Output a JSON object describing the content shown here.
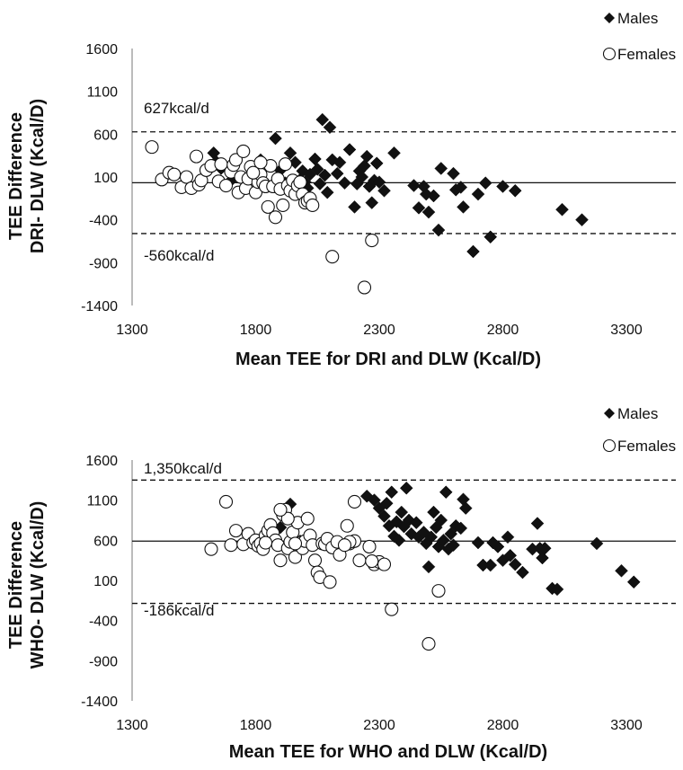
{
  "chart_data": [
    {
      "type": "scatter",
      "ylabel_line1": "TEE Difference",
      "ylabel_line2": "DRI- DLW (Kcal/D)",
      "xlabel": "Mean TEE for DRI and DLW (Kcal/D)",
      "xlim": [
        1300,
        3500
      ],
      "ylim": [
        -1400,
        1600
      ],
      "xticks": [
        1300,
        1800,
        2300,
        2800,
        3300
      ],
      "yticks": [
        -1400,
        -900,
        -400,
        100,
        600,
        1100,
        1600
      ],
      "legend": [
        "Males",
        "Females"
      ],
      "legend_position": "top-right",
      "reference_lines": {
        "mean": 33,
        "upper": 627,
        "lower": -560
      },
      "annotations": {
        "upper": "627kcal/d",
        "lower": "-560kcal/d"
      },
      "series": [
        {
          "name": "Males",
          "marker": "diamond",
          "points": [
            [
              1630,
              380
            ],
            [
              1640,
              280
            ],
            [
              1660,
              200
            ],
            [
              1700,
              60
            ],
            [
              1760,
              70
            ],
            [
              1800,
              230
            ],
            [
              1820,
              300
            ],
            [
              1880,
              550
            ],
            [
              1900,
              180
            ],
            [
              1920,
              30
            ],
            [
              1940,
              380
            ],
            [
              1960,
              270
            ],
            [
              1970,
              -50
            ],
            [
              1980,
              70
            ],
            [
              1990,
              170
            ],
            [
              2000,
              40
            ],
            [
              2010,
              -30
            ],
            [
              2020,
              130
            ],
            [
              2040,
              310
            ],
            [
              2050,
              190
            ],
            [
              2060,
              20
            ],
            [
              2070,
              770
            ],
            [
              2080,
              120
            ],
            [
              2090,
              -80
            ],
            [
              2100,
              680
            ],
            [
              2110,
              300
            ],
            [
              2130,
              140
            ],
            [
              2140,
              270
            ],
            [
              2160,
              30
            ],
            [
              2180,
              420
            ],
            [
              2200,
              -250
            ],
            [
              2210,
              20
            ],
            [
              2220,
              170
            ],
            [
              2230,
              100
            ],
            [
              2240,
              230
            ],
            [
              2250,
              340
            ],
            [
              2260,
              -10
            ],
            [
              2270,
              -200
            ],
            [
              2280,
              60
            ],
            [
              2290,
              260
            ],
            [
              2300,
              40
            ],
            [
              2320,
              -60
            ],
            [
              2360,
              380
            ],
            [
              2440,
              0
            ],
            [
              2460,
              -260
            ],
            [
              2480,
              -10
            ],
            [
              2490,
              -100
            ],
            [
              2500,
              -310
            ],
            [
              2520,
              -120
            ],
            [
              2540,
              -520
            ],
            [
              2550,
              200
            ],
            [
              2600,
              140
            ],
            [
              2610,
              -50
            ],
            [
              2630,
              -20
            ],
            [
              2640,
              -250
            ],
            [
              2700,
              -100
            ],
            [
              2730,
              30
            ],
            [
              2750,
              -600
            ],
            [
              2800,
              -10
            ],
            [
              2850,
              -60
            ],
            [
              2680,
              -770
            ],
            [
              3040,
              -280
            ],
            [
              3120,
              -400
            ]
          ]
        },
        {
          "name": "Females",
          "marker": "circle",
          "points": [
            [
              1380,
              450
            ],
            [
              1420,
              70
            ],
            [
              1450,
              150
            ],
            [
              1470,
              130
            ],
            [
              1500,
              -20
            ],
            [
              1520,
              100
            ],
            [
              1540,
              -30
            ],
            [
              1560,
              340
            ],
            [
              1570,
              10
            ],
            [
              1580,
              60
            ],
            [
              1600,
              180
            ],
            [
              1620,
              230
            ],
            [
              1650,
              50
            ],
            [
              1660,
              250
            ],
            [
              1680,
              0
            ],
            [
              1700,
              160
            ],
            [
              1710,
              240
            ],
            [
              1720,
              300
            ],
            [
              1730,
              -80
            ],
            [
              1740,
              100
            ],
            [
              1750,
              400
            ],
            [
              1760,
              -30
            ],
            [
              1770,
              80
            ],
            [
              1780,
              220
            ],
            [
              1800,
              -80
            ],
            [
              1810,
              40
            ],
            [
              1820,
              130
            ],
            [
              1830,
              30
            ],
            [
              1840,
              -10
            ],
            [
              1850,
              -250
            ],
            [
              1860,
              230
            ],
            [
              1870,
              -10
            ],
            [
              1880,
              -370
            ],
            [
              1890,
              80
            ],
            [
              1900,
              -40
            ],
            [
              1910,
              -230
            ],
            [
              1920,
              250
            ],
            [
              1930,
              0
            ],
            [
              1940,
              -60
            ],
            [
              1950,
              60
            ],
            [
              1960,
              -100
            ],
            [
              1970,
              0
            ],
            [
              1980,
              40
            ],
            [
              1990,
              -100
            ],
            [
              2000,
              -200
            ],
            [
              2010,
              -180
            ],
            [
              2020,
              -150
            ],
            [
              2030,
              -230
            ],
            [
              1820,
              270
            ],
            [
              1790,
              150
            ],
            [
              2110,
              -830
            ],
            [
              2240,
              -1190
            ],
            [
              2270,
              -640
            ]
          ]
        }
      ]
    },
    {
      "type": "scatter",
      "ylabel_line1": "TEE Difference",
      "ylabel_line2": "WHO- DLW (Kcal/D)",
      "xlabel": "Mean TEE for WHO and DLW (Kcal/D)",
      "xlim": [
        1300,
        3500
      ],
      "ylim": [
        -1400,
        1600
      ],
      "xticks": [
        1300,
        1800,
        2300,
        2800,
        3300
      ],
      "yticks": [
        -1400,
        -900,
        -400,
        100,
        600,
        1100,
        1600
      ],
      "legend": [
        "Males",
        "Females"
      ],
      "legend_position": "top-right",
      "reference_lines": {
        "mean": 590,
        "upper": 1350,
        "lower": -186
      },
      "annotations": {
        "upper": "1,350kcal/d",
        "lower": "-186kcal/d"
      },
      "series": [
        {
          "name": "Males",
          "marker": "diamond",
          "points": [
            [
              1900,
              760
            ],
            [
              1940,
              1050
            ],
            [
              1980,
              590
            ],
            [
              2250,
              1150
            ],
            [
              2280,
              1100
            ],
            [
              2300,
              1000
            ],
            [
              2320,
              900
            ],
            [
              2330,
              1060
            ],
            [
              2340,
              780
            ],
            [
              2350,
              1200
            ],
            [
              2360,
              650
            ],
            [
              2370,
              830
            ],
            [
              2380,
              600
            ],
            [
              2390,
              950
            ],
            [
              2400,
              770
            ],
            [
              2410,
              1250
            ],
            [
              2420,
              850
            ],
            [
              2430,
              680
            ],
            [
              2450,
              820
            ],
            [
              2460,
              640
            ],
            [
              2480,
              700
            ],
            [
              2490,
              560
            ],
            [
              2500,
              270
            ],
            [
              2510,
              640
            ],
            [
              2520,
              950
            ],
            [
              2530,
              760
            ],
            [
              2540,
              520
            ],
            [
              2550,
              850
            ],
            [
              2560,
              600
            ],
            [
              2570,
              1200
            ],
            [
              2580,
              490
            ],
            [
              2590,
              680
            ],
            [
              2600,
              540
            ],
            [
              2610,
              780
            ],
            [
              2630,
              750
            ],
            [
              2640,
              1110
            ],
            [
              2650,
              1000
            ],
            [
              2700,
              570
            ],
            [
              2720,
              290
            ],
            [
              2750,
              290
            ],
            [
              2760,
              570
            ],
            [
              2780,
              520
            ],
            [
              2800,
              350
            ],
            [
              2820,
              640
            ],
            [
              2830,
              410
            ],
            [
              2850,
              300
            ],
            [
              2880,
              200
            ],
            [
              2920,
              490
            ],
            [
              2940,
              810
            ],
            [
              2950,
              500
            ],
            [
              2960,
              380
            ],
            [
              2970,
              500
            ],
            [
              3000,
              0
            ],
            [
              3020,
              -10
            ],
            [
              3180,
              560
            ],
            [
              3280,
              220
            ],
            [
              3330,
              80
            ]
          ]
        },
        {
          "name": "Females",
          "marker": "circle",
          "points": [
            [
              1620,
              490
            ],
            [
              1680,
              1080
            ],
            [
              1700,
              540
            ],
            [
              1720,
              720
            ],
            [
              1750,
              550
            ],
            [
              1770,
              680
            ],
            [
              1790,
              570
            ],
            [
              1800,
              600
            ],
            [
              1810,
              530
            ],
            [
              1820,
              560
            ],
            [
              1830,
              490
            ],
            [
              1840,
              660
            ],
            [
              1850,
              720
            ],
            [
              1860,
              790
            ],
            [
              1870,
              690
            ],
            [
              1880,
              600
            ],
            [
              1890,
              540
            ],
            [
              1900,
              350
            ],
            [
              1910,
              920
            ],
            [
              1920,
              980
            ],
            [
              1930,
              500
            ],
            [
              1940,
              580
            ],
            [
              1950,
              700
            ],
            [
              1960,
              390
            ],
            [
              1970,
              820
            ],
            [
              1980,
              570
            ],
            [
              1990,
              500
            ],
            [
              2000,
              590
            ],
            [
              2010,
              870
            ],
            [
              2020,
              660
            ],
            [
              2030,
              540
            ],
            [
              2040,
              350
            ],
            [
              2050,
              200
            ],
            [
              2060,
              140
            ],
            [
              2070,
              560
            ],
            [
              2080,
              550
            ],
            [
              2090,
              620
            ],
            [
              2100,
              80
            ],
            [
              2110,
              510
            ],
            [
              2130,
              580
            ],
            [
              2140,
              420
            ],
            [
              2180,
              560
            ],
            [
              2200,
              590
            ],
            [
              2220,
              350
            ],
            [
              2260,
              520
            ],
            [
              2280,
              300
            ],
            [
              2300,
              330
            ],
            [
              2180,
              580
            ],
            [
              2270,
              340
            ],
            [
              1930,
              870
            ],
            [
              1960,
              560
            ],
            [
              2160,
              540
            ],
            [
              2170,
              780
            ],
            [
              2200,
              1080
            ],
            [
              2320,
              300
            ],
            [
              2350,
              -260
            ],
            [
              2500,
              -690
            ],
            [
              2540,
              -30
            ],
            [
              1900,
              980
            ],
            [
              1840,
              570
            ]
          ]
        }
      ]
    }
  ]
}
